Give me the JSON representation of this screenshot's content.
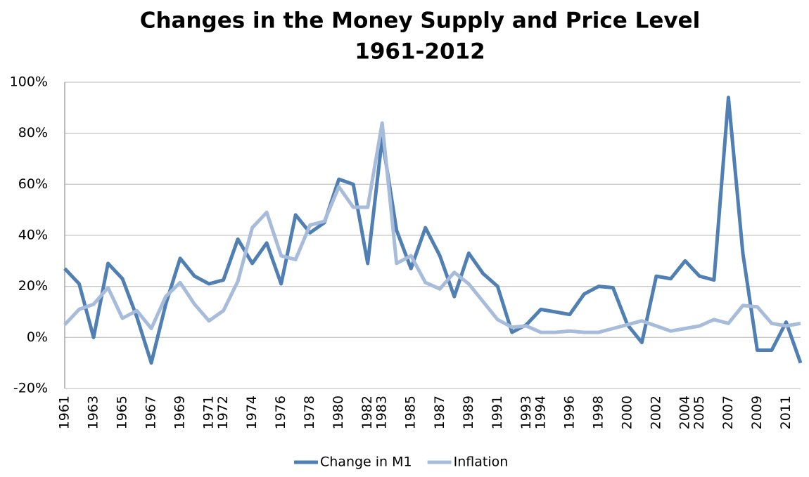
{
  "chart_data": {
    "type": "line",
    "title": "Changes in the Money Supply and Price Level",
    "subtitle": "1961-2012",
    "categories": [
      "1961",
      null,
      "1963",
      null,
      "1965",
      null,
      "1967",
      null,
      "1969",
      null,
      "1971",
      "1972",
      null,
      "1974",
      null,
      "1976",
      null,
      "1978",
      null,
      "1980",
      null,
      "1982",
      "1983",
      null,
      "1985",
      null,
      "1987",
      null,
      "1989",
      null,
      "1991",
      null,
      "1993",
      "1994",
      null,
      "1996",
      null,
      "1998",
      null,
      "2000",
      null,
      "2002",
      null,
      "2004",
      "2005",
      null,
      "2007",
      null,
      "2009",
      null,
      "2011",
      null
    ],
    "series": [
      {
        "name": "Change in M1",
        "color": "#4f7fb3",
        "values": [
          27,
          21,
          0,
          29,
          23,
          8,
          -10,
          13,
          31,
          24,
          21,
          22.5,
          38.5,
          29,
          37,
          21,
          48,
          41,
          45,
          62,
          60,
          29,
          78,
          42,
          27,
          43,
          32,
          16,
          33,
          25,
          20,
          2,
          5,
          11,
          10,
          9,
          17,
          20,
          19.5,
          5,
          -2,
          24,
          23,
          30,
          24,
          22.5,
          94,
          33,
          -5,
          -5,
          6,
          -10
        ]
      },
      {
        "name": "Inflation",
        "color": "#a7bbdb",
        "values": [
          5,
          11,
          13,
          19.5,
          7.5,
          10.5,
          3.5,
          16,
          21.5,
          13,
          6.5,
          10.5,
          22,
          43,
          49,
          32,
          30.5,
          44,
          45.5,
          59,
          51,
          51,
          84,
          29,
          32,
          21.5,
          19,
          25.5,
          21,
          14,
          7,
          4,
          4.5,
          2,
          2,
          2.5,
          2,
          2,
          3.5,
          5,
          6.5,
          4.5,
          2.5,
          3.5,
          4.5,
          7,
          5.5,
          12.5,
          12,
          5.5,
          4.5,
          5.5
        ]
      }
    ],
    "ylim": [
      -20,
      100
    ],
    "yticks": [
      {
        "value": -20,
        "label": "-20%"
      },
      {
        "value": 0,
        "label": "0%"
      },
      {
        "value": 20,
        "label": "20%"
      },
      {
        "value": 40,
        "label": "40%"
      },
      {
        "value": 60,
        "label": "60%"
      },
      {
        "value": 80,
        "label": "80%"
      },
      {
        "value": 100,
        "label": "100%"
      }
    ],
    "grid": true,
    "legend": "bottom"
  }
}
